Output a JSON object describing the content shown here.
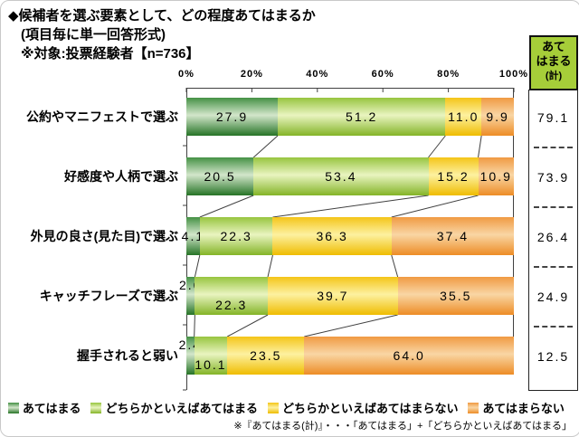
{
  "title": {
    "line1": "◆候補者を選ぶ要素として、どの程度あてはまるか",
    "line2": "(項目毎に単一回答形式)",
    "line3": "※対象:投票経験者【n=736】"
  },
  "footnote": "※『あてはまる(計)』・・・「あてはまる」+「どちらかといえばあてはまる」",
  "summary": {
    "header_lines": [
      "あて",
      "はまる",
      "(計)"
    ],
    "header_bg": "#A6CE39"
  },
  "chart_data": {
    "type": "bar",
    "orientation": "horizontal",
    "stacked": true,
    "unit": "%",
    "xlim": [
      0,
      100
    ],
    "x_ticks": [
      "0%",
      "20%",
      "40%",
      "60%",
      "80%",
      "100%"
    ],
    "grid": false,
    "legend_position": "bottom",
    "categories": [
      "公約やマニフェストで選ぶ",
      "好感度や人柄で選ぶ",
      "外見の良さ(見た目)で選ぶ",
      "キャッチフレーズで選ぶ",
      "握手されると弱い"
    ],
    "series": [
      {
        "name": "あてはまる",
        "values": [
          27.9,
          20.5,
          4.1,
          2.6,
          2.4
        ],
        "color_top": "#459145",
        "color_mid": "#D3E6CB",
        "color_bottom": "#267426"
      },
      {
        "name": "どちらかといえばあてはまる",
        "values": [
          51.2,
          53.4,
          22.3,
          22.3,
          10.1
        ],
        "color_top": "#97C53F",
        "color_mid": "#E9F4C0",
        "color_bottom": "#84B427"
      },
      {
        "name": "どちらかといえばあてはまらない",
        "values": [
          11.0,
          15.2,
          36.3,
          39.7,
          23.5
        ],
        "color_top": "#F4C518",
        "color_mid": "#FDF1A0",
        "color_bottom": "#EFBC00"
      },
      {
        "name": "あてはまらない",
        "values": [
          9.9,
          10.9,
          37.4,
          35.5,
          64.0
        ],
        "color_top": "#F09A42",
        "color_mid": "#F9D6A4",
        "color_bottom": "#ED8C26"
      }
    ],
    "totals": {
      "label": "あてはまる(計)",
      "values": [
        79.1,
        73.9,
        26.4,
        24.9,
        12.5
      ]
    }
  }
}
